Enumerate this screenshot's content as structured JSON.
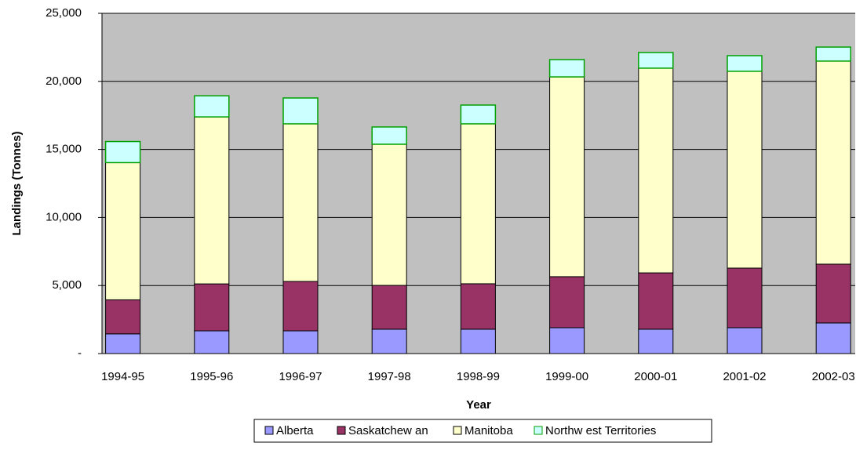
{
  "chart_data": {
    "type": "stacked_bar",
    "x_label": "Year",
    "y_label": "Landings (Tonnes)",
    "categories": [
      "1994-95",
      "1995-96",
      "1996-97",
      "1997-98",
      "1998-99",
      "1999-00",
      "2000-01",
      "2001-02",
      "2002-03"
    ],
    "series": [
      {
        "name": "Alberta",
        "color": "#9999ff",
        "values": [
          1450,
          1670,
          1670,
          1790,
          1790,
          1900,
          1790,
          1900,
          2250
        ]
      },
      {
        "name": "Saskatchew an",
        "color": "#993366",
        "values": [
          2500,
          3450,
          3630,
          3220,
          3340,
          3750,
          4140,
          4380,
          4320
        ]
      },
      {
        "name": "Manitoba",
        "color": "#ffffcc",
        "values": [
          10080,
          12270,
          11580,
          10370,
          11750,
          14680,
          15040,
          14460,
          14920
        ]
      },
      {
        "name": "Northw est Territories",
        "color": "#ccffff",
        "values": [
          1550,
          1550,
          1900,
          1270,
          1380,
          1270,
          1150,
          1150,
          1030
        ]
      }
    ],
    "ylim": [
      0,
      25000
    ],
    "yticks": [
      {
        "value": 0,
        "label": "-"
      },
      {
        "value": 5000,
        "label": "5,000"
      },
      {
        "value": 10000,
        "label": "10,000"
      },
      {
        "value": 15000,
        "label": "15,000"
      },
      {
        "value": 20000,
        "label": "20,000"
      },
      {
        "value": 25000,
        "label": "25,000"
      }
    ],
    "grid": true,
    "legend": "bottom"
  }
}
